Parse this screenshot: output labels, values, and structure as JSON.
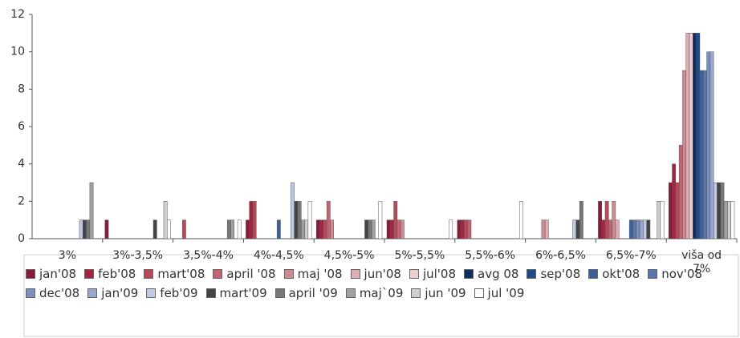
{
  "chart_data": {
    "type": "bar",
    "categories": [
      "3%",
      "3%-3,5%",
      "3,5%-4%",
      "4%-4,5%",
      "4,5%-5%",
      "5%-5,5%",
      "5,5%-6%",
      "6%-6,5%",
      "6,5%-7%",
      "viša od 7%"
    ],
    "series": [
      {
        "name": "jan'08",
        "color": "#8b1a3a",
        "values": [
          0,
          1,
          0,
          1,
          1,
          1,
          1,
          0,
          2,
          3
        ]
      },
      {
        "name": "feb'08",
        "color": "#a3253f",
        "values": [
          0,
          0,
          0,
          2,
          1,
          1,
          1,
          0,
          1,
          4
        ]
      },
      {
        "name": "mart'08",
        "color": "#b84a58",
        "values": [
          0,
          0,
          1,
          2,
          1,
          2,
          1,
          0,
          2,
          3
        ]
      },
      {
        "name": "april '08",
        "color": "#c46470",
        "values": [
          0,
          0,
          0,
          0,
          2,
          1,
          1,
          0,
          1,
          5
        ]
      },
      {
        "name": "maj '08",
        "color": "#d08a92",
        "values": [
          0,
          0,
          0,
          0,
          1,
          1,
          0,
          1,
          2,
          9
        ]
      },
      {
        "name": "jun'08",
        "color": "#e0adb2",
        "values": [
          0,
          0,
          0,
          0,
          0,
          0,
          0,
          1,
          1,
          11
        ]
      },
      {
        "name": "jul'08",
        "color": "#f0cfd2",
        "values": [
          0,
          0,
          0,
          0,
          0,
          0,
          0,
          0,
          0,
          11
        ]
      },
      {
        "name": "avg 08",
        "color": "#0f2d5e",
        "values": [
          0,
          0,
          0,
          0,
          0,
          0,
          0,
          0,
          0,
          11
        ]
      },
      {
        "name": "sep'08",
        "color": "#1f4b8a",
        "values": [
          0,
          0,
          0,
          0,
          0,
          0,
          0,
          0,
          0,
          11
        ]
      },
      {
        "name": "okt'08",
        "color": "#3f5f99",
        "values": [
          0,
          0,
          0,
          1,
          0,
          0,
          0,
          0,
          1,
          9
        ]
      },
      {
        "name": "nov'08",
        "color": "#5a76aa",
        "values": [
          0,
          0,
          0,
          0,
          0,
          0,
          0,
          0,
          1,
          9
        ]
      },
      {
        "name": "dec'08",
        "color": "#7a8fbf",
        "values": [
          0,
          0,
          0,
          0,
          0,
          0,
          0,
          0,
          1,
          10
        ]
      },
      {
        "name": "jan'09",
        "color": "#98a8d0",
        "values": [
          0,
          0,
          0,
          0,
          0,
          0,
          0,
          0,
          1,
          10
        ]
      },
      {
        "name": "feb'09",
        "color": "#c0c9e4",
        "values": [
          1,
          0,
          0,
          3,
          0,
          0,
          0,
          1,
          1,
          3
        ]
      },
      {
        "name": "mart'09",
        "color": "#444444",
        "values": [
          1,
          1,
          0,
          2,
          1,
          0,
          0,
          1,
          1,
          3
        ]
      },
      {
        "name": "april '09",
        "color": "#777777",
        "values": [
          1,
          0,
          1,
          2,
          1,
          0,
          0,
          2,
          0,
          3
        ]
      },
      {
        "name": "maj`09",
        "color": "#a0a0a0",
        "values": [
          3,
          0,
          1,
          1,
          1,
          0,
          0,
          0,
          0,
          2
        ]
      },
      {
        "name": "jun '09",
        "color": "#cfcfcf",
        "values": [
          0,
          2,
          0,
          1,
          0,
          0,
          0,
          0,
          2,
          2
        ]
      },
      {
        "name": "jul '09",
        "color": "#ffffff",
        "values": [
          0,
          1,
          1,
          2,
          2,
          1,
          2,
          0,
          2,
          2
        ]
      }
    ],
    "ylim": [
      0,
      12
    ],
    "yticks": [
      0,
      2,
      4,
      6,
      8,
      10,
      12
    ]
  }
}
